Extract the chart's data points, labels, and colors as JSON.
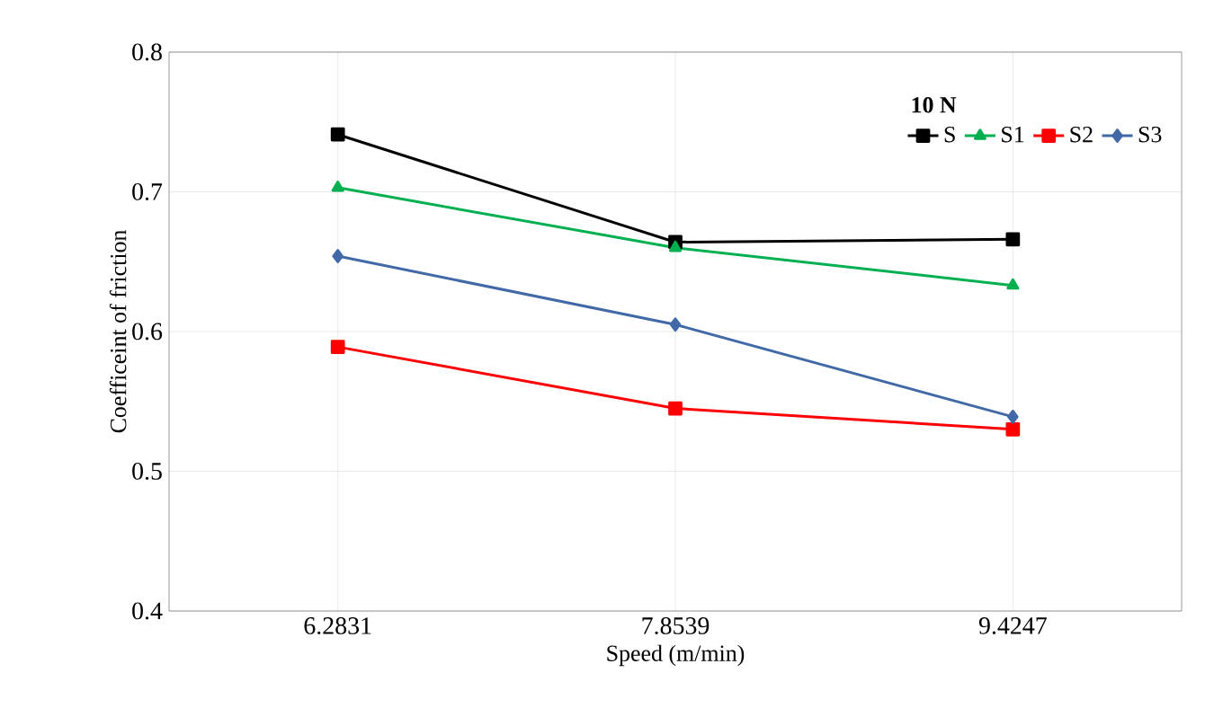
{
  "chart_data": {
    "type": "line",
    "xlabel": "Speed (m/min)",
    "ylabel": "Coefficeint of friction",
    "legend_title": "10 N",
    "categories": [
      "6.2831",
      "7.8539",
      "9.4247"
    ],
    "series": [
      {
        "name": "S",
        "color": "#000000",
        "marker": "square",
        "values": [
          0.741,
          0.664,
          0.666
        ]
      },
      {
        "name": "S1",
        "color": "#00b050",
        "marker": "triangle",
        "values": [
          0.703,
          0.66,
          0.633
        ]
      },
      {
        "name": "S2",
        "color": "#ff0000",
        "marker": "square",
        "values": [
          0.589,
          0.545,
          0.53
        ]
      },
      {
        "name": "S3",
        "color": "#4169a8",
        "marker": "diamond",
        "values": [
          0.654,
          0.605,
          0.539
        ]
      }
    ],
    "ylim": [
      0.4,
      0.8
    ],
    "yticks": [
      0.4,
      0.5,
      0.6,
      0.7,
      0.8
    ],
    "grid": true,
    "legend": "top right"
  }
}
